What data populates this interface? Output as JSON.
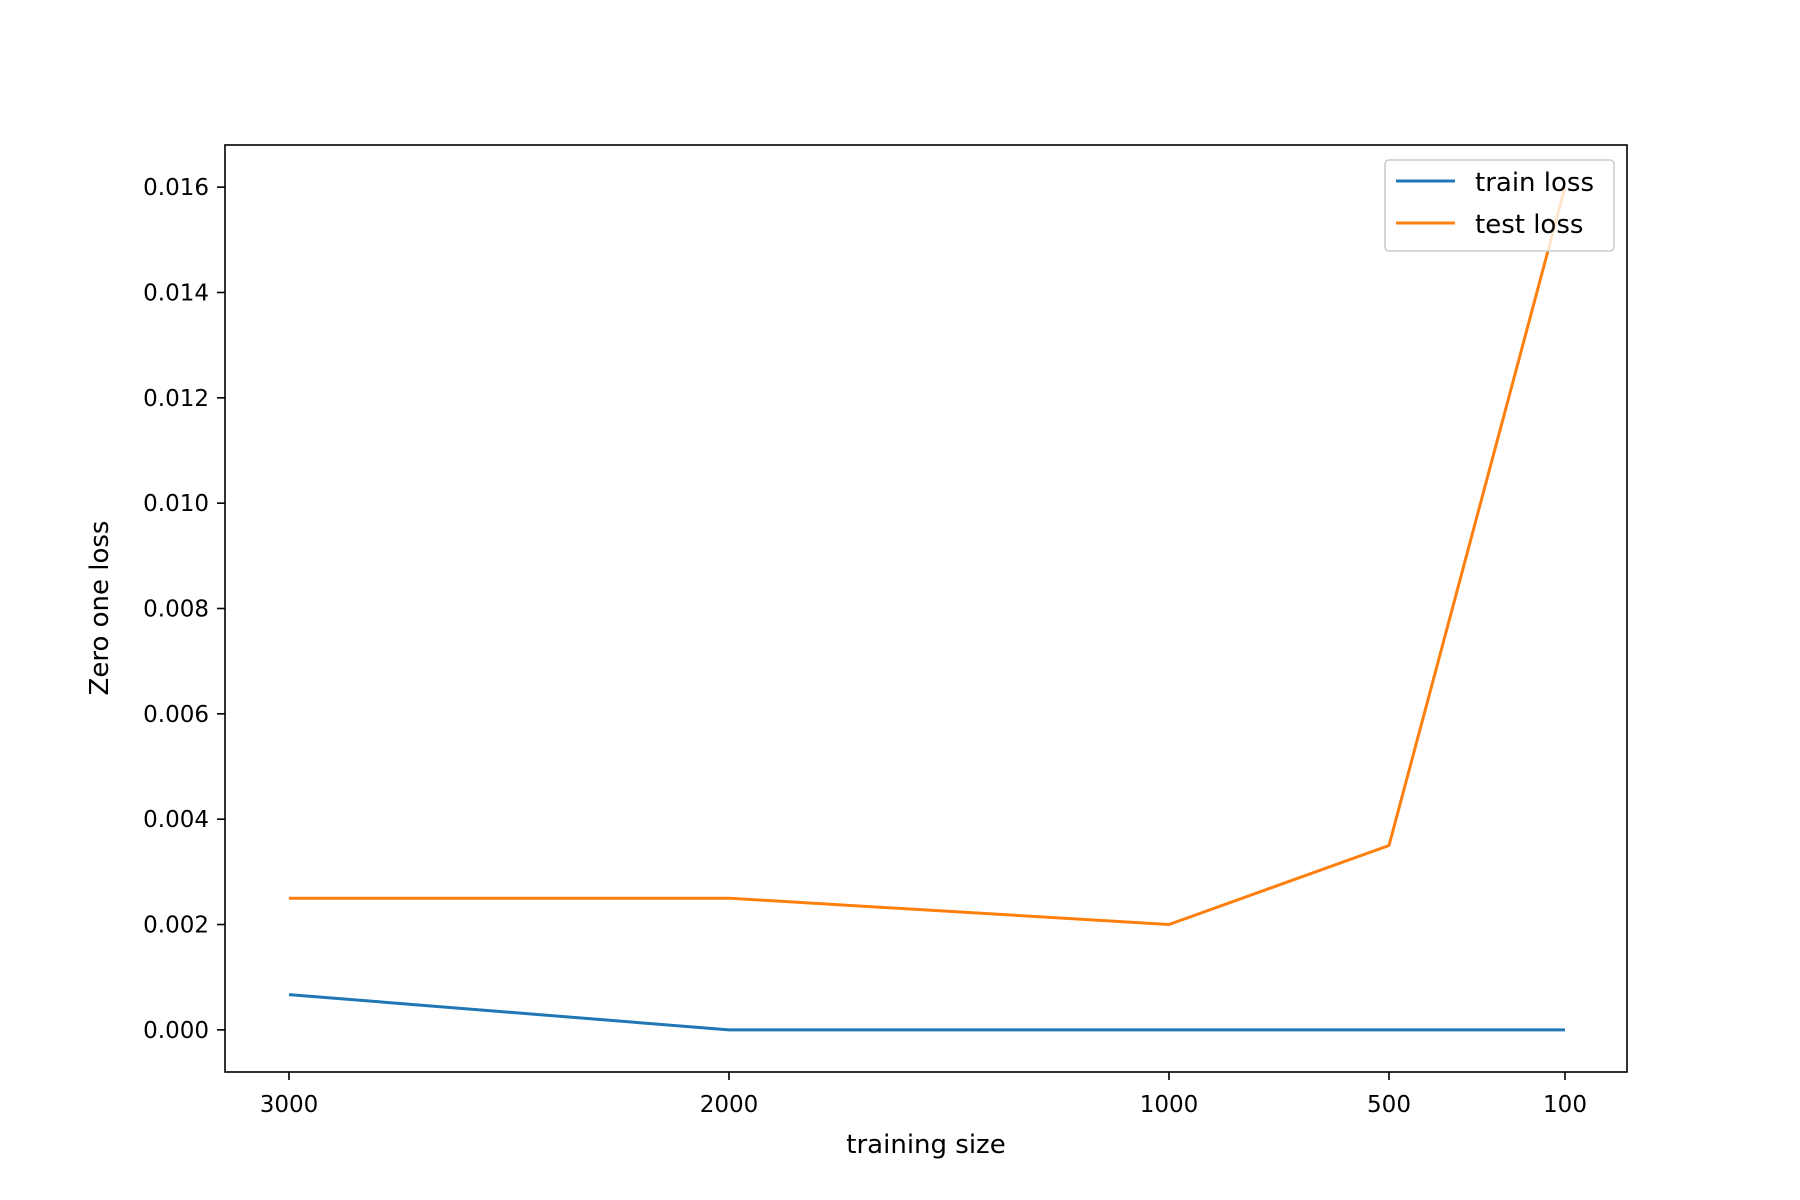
{
  "chart_data": {
    "type": "line",
    "title": "",
    "xlabel": "training size",
    "ylabel": "Zero one loss",
    "x": [
      3000,
      2000,
      1000,
      500,
      100
    ],
    "x_tick_labels": [
      "3000",
      "2000",
      "1000",
      "500",
      "100"
    ],
    "x_reversed": true,
    "y_ticks": [
      0.0,
      0.002,
      0.004,
      0.006,
      0.008,
      0.01,
      0.012,
      0.014,
      0.016
    ],
    "y_tick_labels": [
      "0.000",
      "0.002",
      "0.004",
      "0.006",
      "0.008",
      "0.010",
      "0.012",
      "0.014",
      "0.016"
    ],
    "ylim": [
      -0.0008,
      0.0168
    ],
    "grid": false,
    "legend_position": "top-right",
    "series": [
      {
        "name": "train loss",
        "color": "#1f77b4",
        "values": [
          0.00067,
          0.0,
          0.0,
          0.0,
          0.0
        ]
      },
      {
        "name": "test loss",
        "color": "#ff7f0e",
        "values": [
          0.0025,
          0.0025,
          0.002,
          0.0035,
          0.016
        ]
      }
    ]
  }
}
